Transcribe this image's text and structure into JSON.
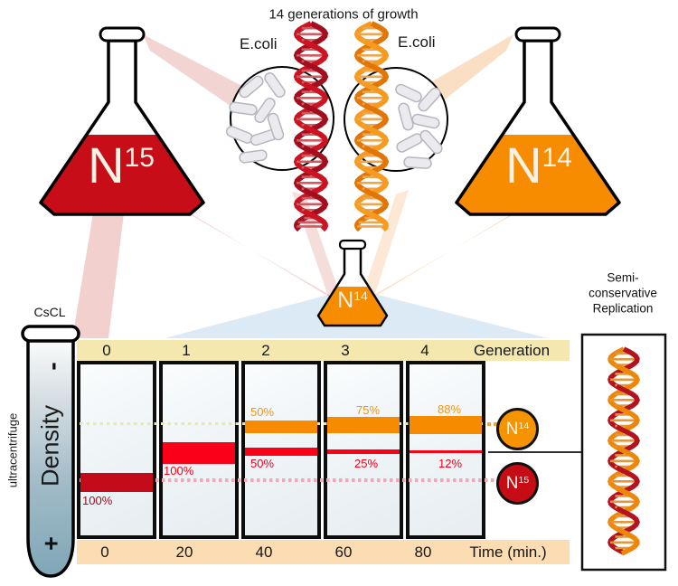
{
  "title": "14 generations of growth",
  "ecoli_left": "E.coli",
  "ecoli_right": "E.coli",
  "flasks": {
    "n15": {
      "base": "N",
      "sup": "15"
    },
    "n14": {
      "base": "N",
      "sup": "14"
    },
    "small_n14": {
      "base": "N",
      "sup": "14"
    }
  },
  "tube": {
    "cscl": "CsCL",
    "minus": "-",
    "density": "Density",
    "plus": "+",
    "side": "ultracentrifuge"
  },
  "chart": {
    "generation_label": "Generation",
    "time_label": "Time (min.)",
    "columns": [
      {
        "generation": "0",
        "time": "0",
        "n14_label": "",
        "n15_label": "100%"
      },
      {
        "generation": "1",
        "time": "20",
        "n14_label": "",
        "n15_label": "100%"
      },
      {
        "generation": "2",
        "time": "40",
        "n14_label": "50%",
        "n15_label": "50%"
      },
      {
        "generation": "3",
        "time": "60",
        "n14_label": "75%",
        "n15_label": "25%"
      },
      {
        "generation": "4",
        "time": "80",
        "n14_label": "88%",
        "n15_label": "12%"
      }
    ]
  },
  "legend": {
    "n14": {
      "base": "N",
      "sup": "14"
    },
    "n15": {
      "base": "N",
      "sup": "15"
    }
  },
  "semi_box": {
    "line1": "Semi-",
    "line2": "conservative",
    "line3": "Replication"
  },
  "colors": {
    "n15_dark_red": "#c30b1c",
    "hybrid_red": "#fb0019",
    "n14_orange": "#f68b00",
    "header_band": "#f4e8ae",
    "footer_band": "#fcdcb2"
  }
}
